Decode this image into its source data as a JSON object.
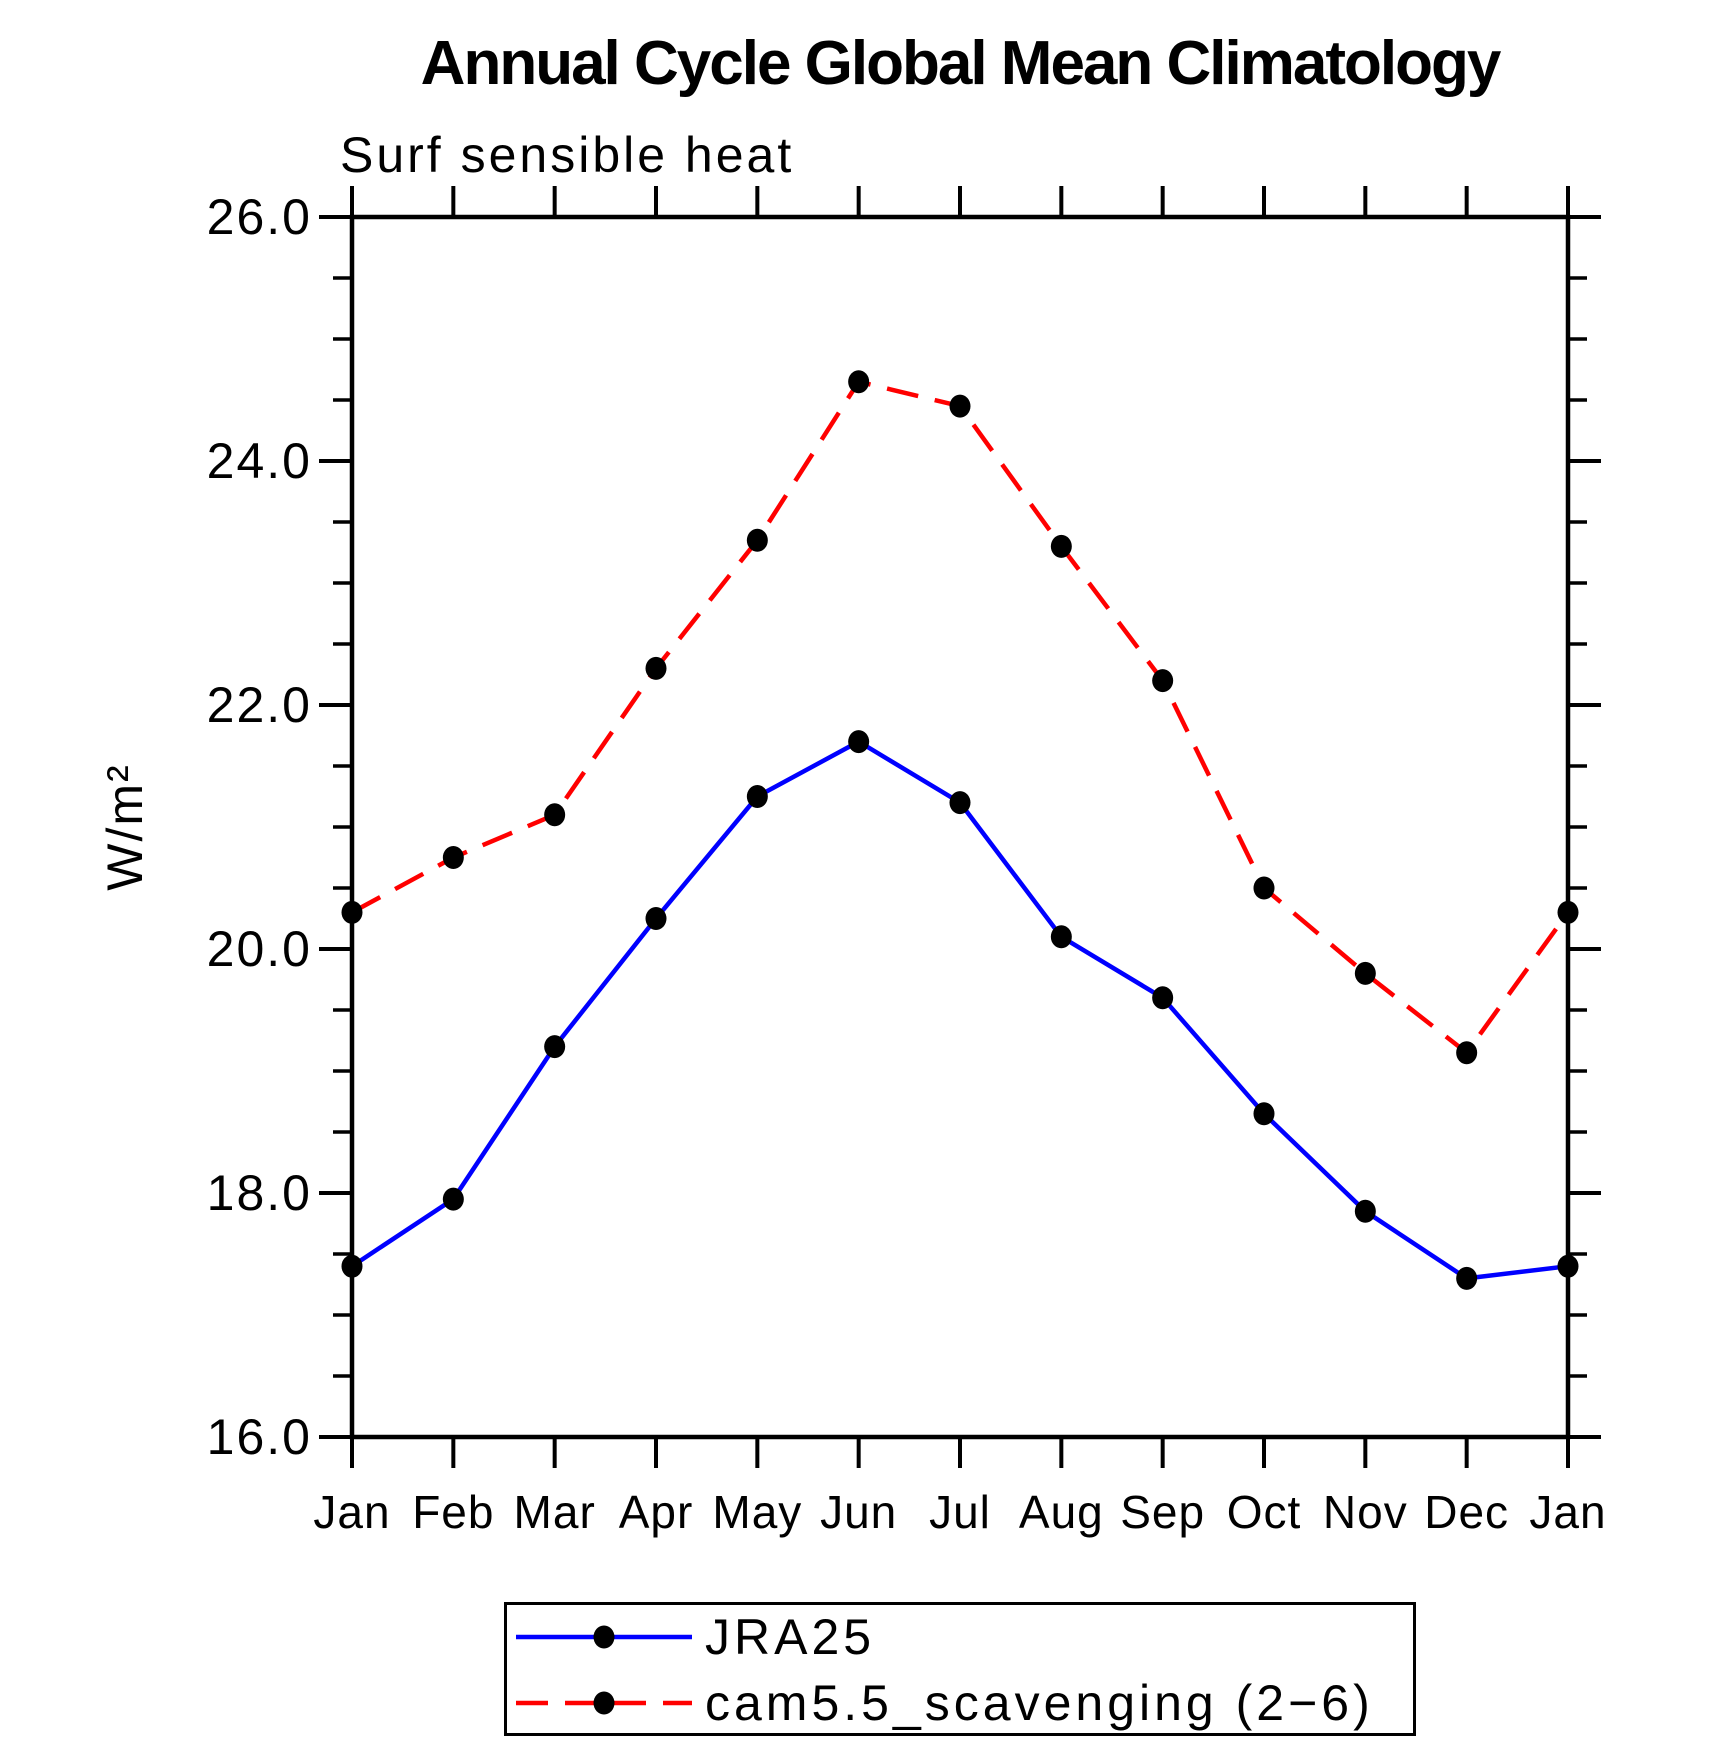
{
  "chart_data": {
    "type": "line",
    "title": "Annual Cycle Global Mean Climatology",
    "subtitle": "Surf sensible heat",
    "ylabel": "W/m²",
    "xlabel": "",
    "categories": [
      "Jan",
      "Feb",
      "Mar",
      "Apr",
      "May",
      "Jun",
      "Jul",
      "Aug",
      "Sep",
      "Oct",
      "Nov",
      "Dec",
      "Jan"
    ],
    "ylim": [
      16.0,
      26.0
    ],
    "ytick_major": 2.0,
    "ytick_minor": 0.5,
    "ytick_label_format": "one_decimal",
    "grid": false,
    "legend_position": "bottom-center",
    "axis_color": "#000000",
    "marker_color": "#000000",
    "series": [
      {
        "name": "JRA25",
        "color": "#0000ff",
        "line_style": "solid",
        "marker": "filled-circle",
        "values": [
          17.4,
          17.95,
          19.2,
          20.25,
          21.25,
          21.7,
          21.2,
          20.1,
          19.6,
          18.65,
          17.85,
          17.3,
          17.4
        ]
      },
      {
        "name": "cam5.5_scavenging (2−6)",
        "color": "#ff0000",
        "line_style": "dashed",
        "marker": "filled-circle",
        "values": [
          20.3,
          20.75,
          21.1,
          22.3,
          23.35,
          24.65,
          24.45,
          23.3,
          22.2,
          20.5,
          19.8,
          19.15,
          20.3
        ]
      }
    ]
  }
}
